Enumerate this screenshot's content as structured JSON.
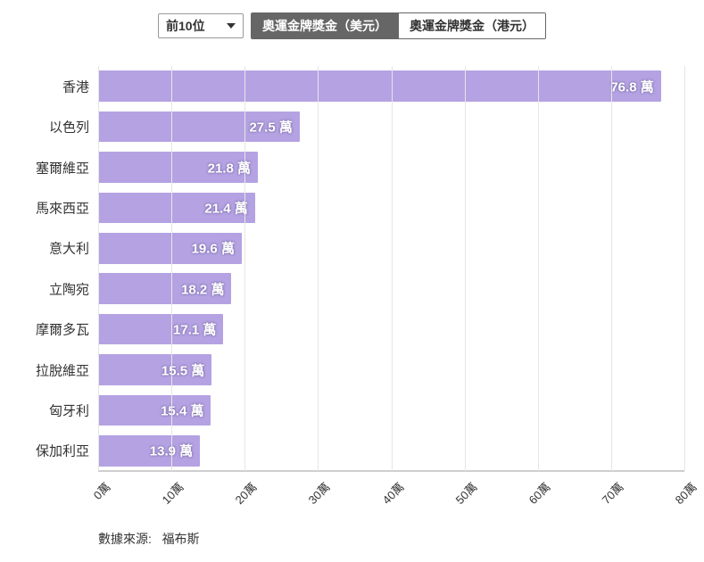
{
  "controls": {
    "select_value": "前10位",
    "tabs": [
      {
        "label": "奧運金牌獎金（美元）",
        "active": true
      },
      {
        "label": "奧運金牌獎金（港元）",
        "active": false
      }
    ]
  },
  "chart": {
    "type": "bar-horizontal",
    "bar_color": "#b4a2e3",
    "grid_color": "#e6e6e6",
    "axis_color": "#cfcfcf",
    "background_color": "#ffffff",
    "label_color": "#ffffff",
    "ylabel_color": "#333333",
    "xlabel_color": "#333333",
    "data_label_fontsize": 15,
    "ylabel_fontsize": 15,
    "xlabel_fontsize": 13,
    "x_min": 0,
    "x_max": 80,
    "x_tick_step": 10,
    "x_tick_suffix": "萬",
    "data_label_suffix": " 萬",
    "data": [
      {
        "name": "香港",
        "value": 76.8
      },
      {
        "name": "以色列",
        "value": 27.5
      },
      {
        "name": "塞爾維亞",
        "value": 21.8
      },
      {
        "name": "馬來西亞",
        "value": 21.4
      },
      {
        "name": "意大利",
        "value": 19.6
      },
      {
        "name": "立陶宛",
        "value": 18.2
      },
      {
        "name": "摩爾多瓦",
        "value": 17.1
      },
      {
        "name": "拉脫維亞",
        "value": 15.5
      },
      {
        "name": "匈牙利",
        "value": 15.4
      },
      {
        "name": "保加利亞",
        "value": 13.9
      }
    ]
  },
  "source": {
    "label": "數據來源:",
    "value": "福布斯"
  }
}
